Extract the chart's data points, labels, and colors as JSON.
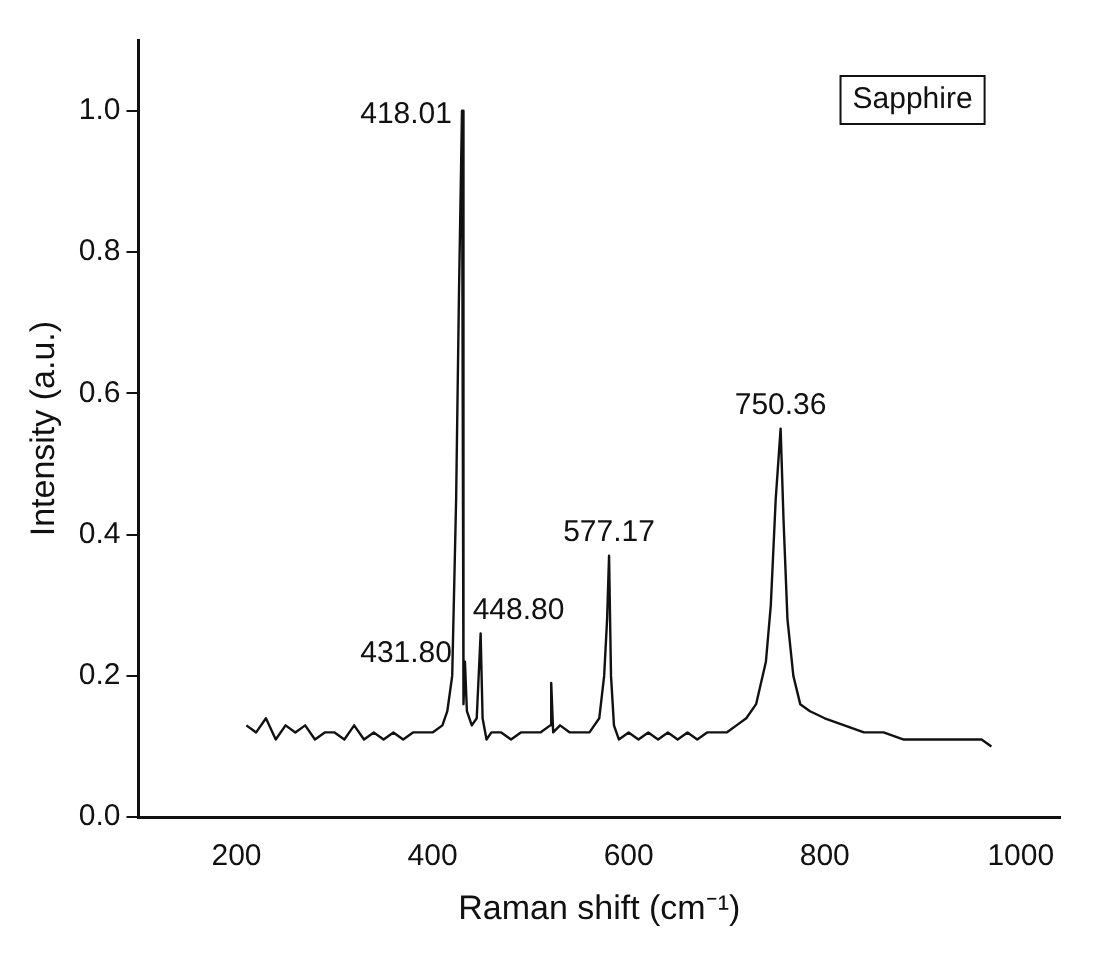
{
  "chart_data": {
    "type": "line",
    "xlabel": "Raman shift (cm⁻¹)",
    "ylabel": "Intensity (a.u.)",
    "x": [
      210,
      220,
      230,
      240,
      250,
      260,
      270,
      280,
      290,
      300,
      310,
      320,
      330,
      340,
      350,
      360,
      370,
      380,
      390,
      400,
      410,
      415,
      420,
      424,
      427,
      430,
      431,
      432,
      433,
      435,
      440,
      445,
      449,
      451,
      455,
      460,
      470,
      480,
      490,
      500,
      510,
      520,
      521,
      523,
      530,
      540,
      550,
      560,
      570,
      575,
      578,
      580,
      582,
      585,
      590,
      600,
      610,
      620,
      630,
      640,
      650,
      660,
      670,
      680,
      690,
      700,
      710,
      720,
      730,
      740,
      745,
      750,
      755,
      758,
      762,
      768,
      775,
      785,
      800,
      820,
      840,
      860,
      880,
      900,
      920,
      940,
      960,
      970
    ],
    "series": [
      {
        "color": "#111111",
        "values": [
          0.13,
          0.12,
          0.14,
          0.11,
          0.13,
          0.12,
          0.13,
          0.11,
          0.12,
          0.12,
          0.11,
          0.13,
          0.11,
          0.12,
          0.11,
          0.12,
          0.11,
          0.12,
          0.12,
          0.12,
          0.13,
          0.15,
          0.2,
          0.45,
          0.75,
          1.0,
          0.6,
          0.16,
          0.22,
          0.15,
          0.13,
          0.14,
          0.26,
          0.14,
          0.11,
          0.12,
          0.12,
          0.11,
          0.12,
          0.12,
          0.12,
          0.13,
          0.19,
          0.12,
          0.13,
          0.12,
          0.12,
          0.12,
          0.14,
          0.2,
          0.28,
          0.37,
          0.2,
          0.13,
          0.11,
          0.12,
          0.11,
          0.12,
          0.11,
          0.12,
          0.11,
          0.12,
          0.11,
          0.12,
          0.12,
          0.12,
          0.13,
          0.14,
          0.16,
          0.22,
          0.3,
          0.45,
          0.55,
          0.42,
          0.28,
          0.2,
          0.16,
          0.15,
          0.14,
          0.13,
          0.12,
          0.12,
          0.11,
          0.11,
          0.11,
          0.11,
          0.11,
          0.1
        ]
      }
    ],
    "xlim": [
      100,
      1040
    ],
    "xticks": [
      200,
      400,
      600,
      800,
      1000
    ],
    "ylim": [
      0,
      1.1
    ],
    "yticks": [
      {
        "value": 0,
        "label": "0.0"
      },
      0.2,
      0.4,
      0.6,
      0.8,
      {
        "value": 1,
        "label": "1.0"
      }
    ],
    "annotations": [
      {
        "text": "418.01",
        "x": 430,
        "y": 1.0
      },
      {
        "text": "431.80",
        "x": 433,
        "y": 0.22
      },
      {
        "text": "448.80",
        "x": 449,
        "y": 0.26
      },
      {
        "text": "577.17",
        "x": 580,
        "y": 0.37
      },
      {
        "text": "750.36",
        "x": 755,
        "y": 0.55
      },
      "Sapphire"
    ],
    "grid": false,
    "legend": false,
    "marker": "none",
    "line_style": "solid"
  }
}
